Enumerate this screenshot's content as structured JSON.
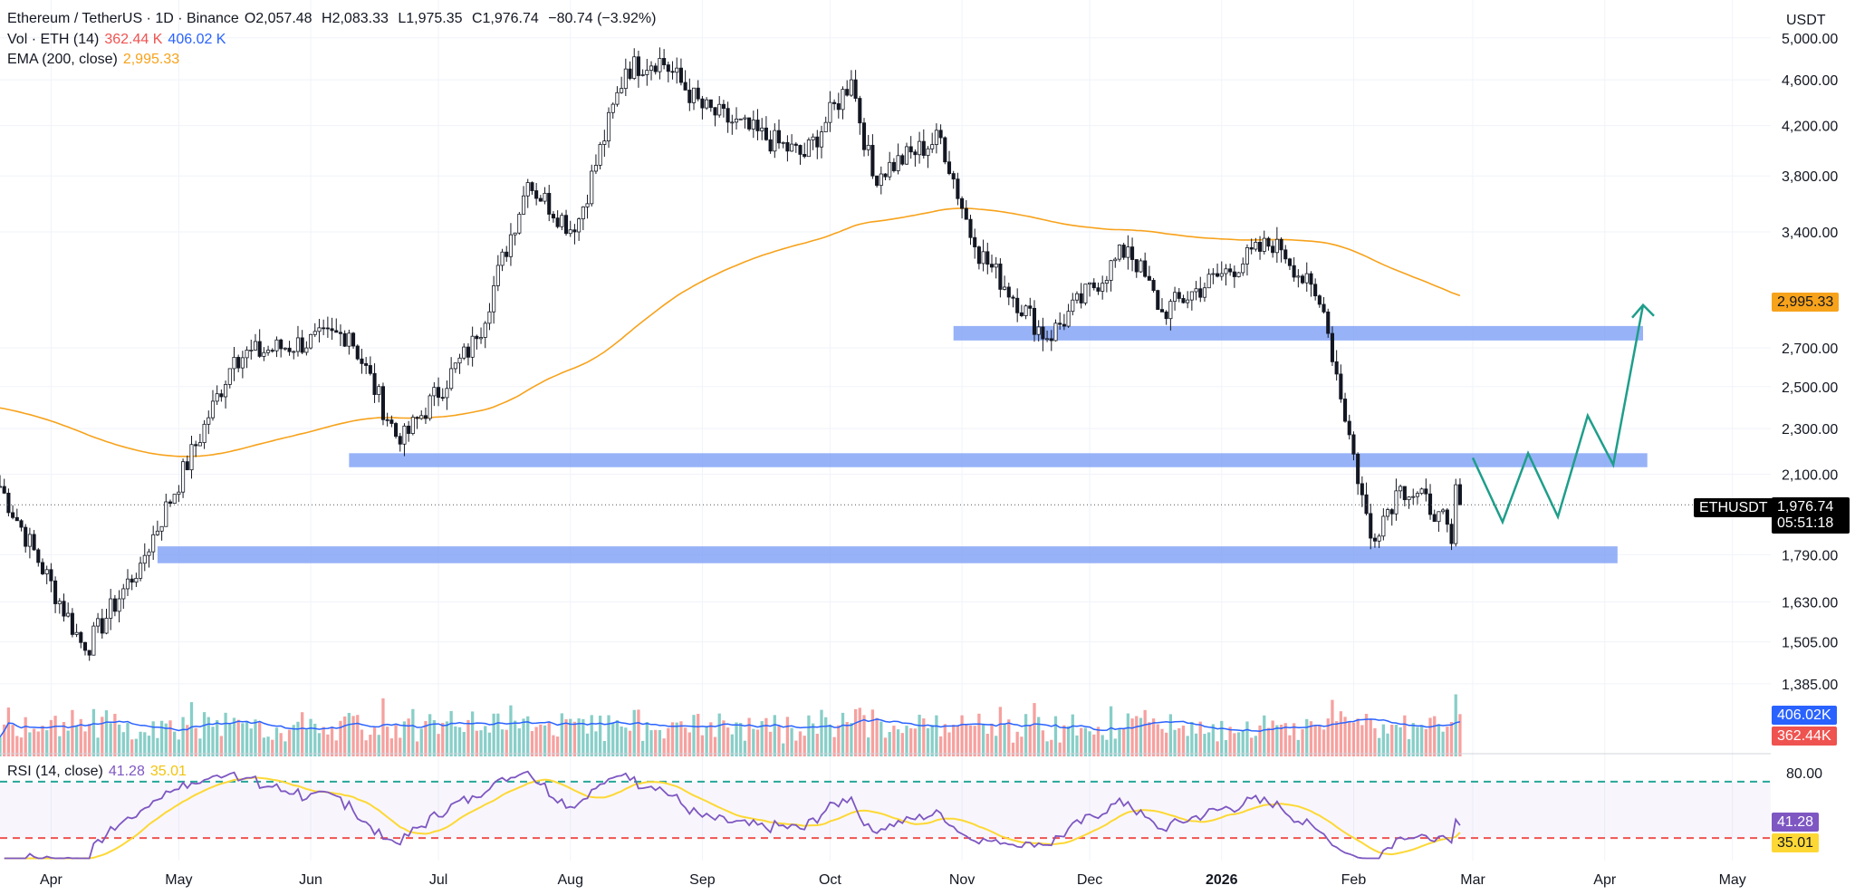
{
  "header": {
    "symbol_title": "Ethereum / TetherUS · 1D · Binance",
    "open_label": "O",
    "open": "2,057.48",
    "high_label": "H",
    "high": "2,083.33",
    "low_label": "L",
    "low": "1,975.35",
    "close_label": "C",
    "close": "1,976.74",
    "change": "−80.74 (−3.92%)",
    "vol_label": "Vol · ETH (14)",
    "vol_val1": "362.44 K",
    "vol_val2": "406.02 K",
    "ema_label": "EMA (200, close)",
    "ema_val": "2,995.33",
    "rsi_label": "RSI (14, close)",
    "rsi_val1": "41.28",
    "rsi_val2": "35.01"
  },
  "price_axis": {
    "currency": "USDT",
    "ticks": [
      "5,000.00",
      "4,600.00",
      "4,200.00",
      "3,800.00",
      "3,400.00",
      "2,700.00",
      "2,500.00",
      "2,300.00",
      "2,100.00",
      "1,790.00",
      "1,630.00",
      "1,505.00",
      "1,385.00"
    ],
    "ema_badge": "2,995.33",
    "last_price_badge": "1,976.74",
    "countdown": "05:51:18",
    "symbol_badge": "ETHUSDT",
    "vol_badge_ma": "406.02K",
    "vol_badge_last": "362.44K"
  },
  "rsi_axis": {
    "level_80": "80.00",
    "rsi_badge": "41.28",
    "rsi_ma_badge": "35.01"
  },
  "time_axis": [
    "Apr",
    "May",
    "Jun",
    "Jul",
    "Aug",
    "Sep",
    "Oct",
    "Nov",
    "Dec",
    "2026",
    "Feb",
    "Mar",
    "Apr",
    "May"
  ],
  "colors": {
    "up": "#26a69a",
    "down": "#ef5350",
    "ema": "#f7a21b",
    "zone": "#7a9cf5",
    "vol_ma": "#2962ff",
    "rsi": "#7e57c2",
    "rsi_ma": "#fdd835",
    "projection": "#1e9e8a"
  },
  "chart_data": {
    "type": "candlestick",
    "symbol": "ETHUSDT",
    "timeframe": "1D",
    "exchange": "Binance",
    "last_candle": {
      "open": 2057.48,
      "high": 2083.33,
      "low": 1975.35,
      "close": 1976.74,
      "change": -80.74,
      "change_pct": -3.92
    },
    "ema200_last": 2995.33,
    "volume_last": 362440,
    "volume_ma_last": 406020,
    "rsi_last": 41.28,
    "rsi_ma_last": 35.01,
    "rsi_levels": [
      80,
      30
    ],
    "x_range": [
      "2025-03-20",
      "2026-05-10"
    ],
    "y_range": [
      1300,
      5200
    ],
    "y_scale": "log",
    "support_resistance_zones": [
      {
        "x_start": "2025-10-30",
        "x_end": "2026-04-10",
        "low": 2740,
        "high": 2820
      },
      {
        "x_start": "2025-06-10",
        "x_end": "2026-04-11",
        "low": 2130,
        "high": 2190
      },
      {
        "x_start": "2025-04-26",
        "x_end": "2026-04-04",
        "low": 1760,
        "high": 1820
      }
    ],
    "projection_path": [
      {
        "date": "2026-03-01",
        "price": 2170
      },
      {
        "date": "2026-03-08",
        "price": 1910
      },
      {
        "date": "2026-03-14",
        "price": 2190
      },
      {
        "date": "2026-03-21",
        "price": 1930
      },
      {
        "date": "2026-03-28",
        "price": 2360
      },
      {
        "date": "2026-04-03",
        "price": 2140
      },
      {
        "date": "2026-04-10",
        "price": 2940
      }
    ],
    "close_anchors": [
      {
        "date": "2025-03-20",
        "price": 2050
      },
      {
        "date": "2025-04-09",
        "price": 1480
      },
      {
        "date": "2025-04-22",
        "price": 1760
      },
      {
        "date": "2025-05-08",
        "price": 2350
      },
      {
        "date": "2025-05-14",
        "price": 2650
      },
      {
        "date": "2025-06-10",
        "price": 2780
      },
      {
        "date": "2025-06-22",
        "price": 2230
      },
      {
        "date": "2025-07-10",
        "price": 2750
      },
      {
        "date": "2025-07-22",
        "price": 3750
      },
      {
        "date": "2025-08-02",
        "price": 3400
      },
      {
        "date": "2025-08-14",
        "price": 4700
      },
      {
        "date": "2025-08-22",
        "price": 4800
      },
      {
        "date": "2025-09-01",
        "price": 4350
      },
      {
        "date": "2025-09-25",
        "price": 3950
      },
      {
        "date": "2025-10-06",
        "price": 4600
      },
      {
        "date": "2025-10-11",
        "price": 3800
      },
      {
        "date": "2025-10-27",
        "price": 4100
      },
      {
        "date": "2025-11-04",
        "price": 3300
      },
      {
        "date": "2025-11-21",
        "price": 2750
      },
      {
        "date": "2025-12-10",
        "price": 3300
      },
      {
        "date": "2025-12-18",
        "price": 2900
      },
      {
        "date": "2026-01-14",
        "price": 3350
      },
      {
        "date": "2026-01-25",
        "price": 2900
      },
      {
        "date": "2026-02-05",
        "price": 1850
      },
      {
        "date": "2026-02-12",
        "price": 2050
      },
      {
        "date": "2026-02-21",
        "price": 1950
      },
      {
        "date": "2026-02-24",
        "price": 1830
      },
      {
        "date": "2026-02-25",
        "price": 2057
      },
      {
        "date": "2026-02-26",
        "price": 1977
      }
    ]
  }
}
